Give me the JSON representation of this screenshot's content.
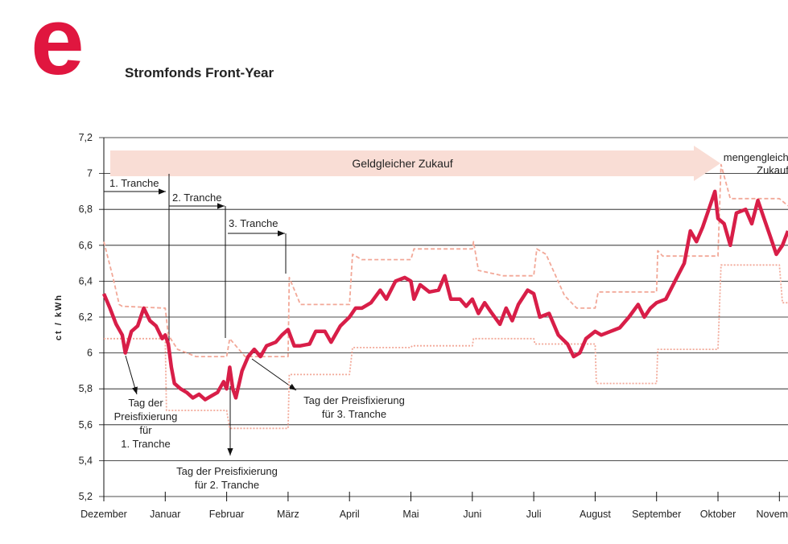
{
  "logo": "e",
  "chart_data": {
    "type": "line",
    "title": "Stromfonds Front-Year",
    "ylabel": "ct / kWh",
    "xlim": [
      0,
      11.14
    ],
    "ylim": [
      5.2,
      7.2
    ],
    "xticks": [
      {
        "value": 0,
        "label": "Dezember"
      },
      {
        "value": 1,
        "label": "Januar"
      },
      {
        "value": 2,
        "label": "Februar"
      },
      {
        "value": 3,
        "label": "März"
      },
      {
        "value": 4,
        "label": "April"
      },
      {
        "value": 5,
        "label": "Mai"
      },
      {
        "value": 6,
        "label": "Juni"
      },
      {
        "value": 7,
        "label": "Juli"
      },
      {
        "value": 8,
        "label": "August"
      },
      {
        "value": 9,
        "label": "September"
      },
      {
        "value": 10,
        "label": "Oktober"
      },
      {
        "value": 11,
        "label": "November"
      }
    ],
    "yticks": [
      {
        "value": 5.2,
        "label": "5,2"
      },
      {
        "value": 5.4,
        "label": "5,4"
      },
      {
        "value": 5.6,
        "label": "5,6"
      },
      {
        "value": 5.8,
        "label": "5,8"
      },
      6,
      {
        "value": 6.2,
        "label": "6,2"
      },
      {
        "value": 6.4,
        "label": "6,4"
      },
      {
        "value": 6.6,
        "label": "6,6"
      },
      {
        "value": 6.8,
        "label": "6,8"
      },
      7,
      {
        "value": 7.2,
        "label": "7,2"
      }
    ],
    "grid": true,
    "series": [
      {
        "color": "#f2a898",
        "style": "dashed",
        "x": [
          0,
          0.15,
          0.25,
          0.3,
          1.0,
          1.05,
          1.2,
          1.5,
          2.0,
          2.05,
          2.3,
          3.0,
          3.02,
          3.2,
          4.0,
          4.05,
          4.2,
          5.0,
          5.05,
          6.0,
          6.02,
          6.1,
          6.5,
          7.0,
          7.05,
          7.2,
          7.5,
          7.7,
          8.0,
          8.05,
          9.0,
          9.02,
          9.1,
          10.0,
          10.05,
          10.2,
          11.0,
          11.14
        ],
        "values": [
          6.62,
          6.42,
          6.27,
          6.26,
          6.25,
          6.1,
          6.02,
          5.98,
          5.98,
          6.08,
          5.98,
          5.98,
          6.42,
          6.27,
          6.27,
          6.55,
          6.52,
          6.52,
          6.58,
          6.58,
          6.62,
          6.46,
          6.43,
          6.43,
          6.58,
          6.55,
          6.32,
          6.25,
          6.25,
          6.34,
          6.34,
          6.57,
          6.54,
          6.54,
          7.05,
          6.86,
          6.86,
          6.82
        ]
      },
      {
        "color": "#f2a898",
        "style": "dotted",
        "x": [
          0,
          1.0,
          1.02,
          2.0,
          2.05,
          3.0,
          3.02,
          4.0,
          4.05,
          5.0,
          5.02,
          6.0,
          6.02,
          7.0,
          7.02,
          8.0,
          8.02,
          9.0,
          9.02,
          10.0,
          10.05,
          11.0,
          11.05,
          11.14
        ],
        "values": [
          6.08,
          6.08,
          5.68,
          5.68,
          5.58,
          5.58,
          5.88,
          5.88,
          6.03,
          6.03,
          6.04,
          6.04,
          6.08,
          6.08,
          6.05,
          6.05,
          5.83,
          5.83,
          6.02,
          6.02,
          6.49,
          6.49,
          6.28,
          6.28
        ]
      },
      {
        "color": "#d81e48",
        "style": "solid",
        "x": [
          0,
          0.1,
          0.2,
          0.3,
          0.35,
          0.45,
          0.55,
          0.65,
          0.75,
          0.85,
          0.95,
          1.0,
          1.05,
          1.1,
          1.15,
          1.25,
          1.35,
          1.45,
          1.55,
          1.65,
          1.75,
          1.85,
          1.95,
          2.0,
          2.05,
          2.1,
          2.15,
          2.25,
          2.35,
          2.45,
          2.55,
          2.65,
          2.8,
          2.9,
          3.0,
          3.1,
          3.2,
          3.35,
          3.45,
          3.6,
          3.7,
          3.85,
          4.0,
          4.1,
          4.2,
          4.35,
          4.5,
          4.6,
          4.75,
          4.9,
          5.0,
          5.05,
          5.15,
          5.3,
          5.45,
          5.55,
          5.65,
          5.8,
          5.9,
          6.0,
          6.1,
          6.2,
          6.3,
          6.45,
          6.55,
          6.65,
          6.75,
          6.9,
          7.0,
          7.1,
          7.25,
          7.4,
          7.55,
          7.65,
          7.75,
          7.85,
          8.0,
          8.1,
          8.25,
          8.4,
          8.55,
          8.7,
          8.8,
          8.9,
          9.0,
          9.15,
          9.3,
          9.45,
          9.55,
          9.65,
          9.75,
          9.85,
          9.95,
          10.0,
          10.1,
          10.2,
          10.3,
          10.45,
          10.55,
          10.65,
          10.75,
          10.85,
          10.95,
          11.05,
          11.14
        ],
        "values": [
          6.33,
          6.25,
          6.16,
          6.1,
          6.0,
          6.12,
          6.15,
          6.25,
          6.18,
          6.15,
          6.08,
          6.1,
          6.05,
          5.92,
          5.83,
          5.8,
          5.78,
          5.75,
          5.77,
          5.74,
          5.76,
          5.78,
          5.84,
          5.8,
          5.92,
          5.8,
          5.75,
          5.9,
          5.98,
          6.02,
          5.98,
          6.04,
          6.06,
          6.1,
          6.13,
          6.04,
          6.04,
          6.05,
          6.12,
          6.12,
          6.06,
          6.15,
          6.2,
          6.25,
          6.25,
          6.28,
          6.35,
          6.3,
          6.4,
          6.42,
          6.4,
          6.3,
          6.38,
          6.34,
          6.35,
          6.43,
          6.3,
          6.3,
          6.26,
          6.3,
          6.22,
          6.28,
          6.23,
          6.16,
          6.25,
          6.18,
          6.27,
          6.35,
          6.33,
          6.2,
          6.22,
          6.1,
          6.05,
          5.98,
          6.0,
          6.08,
          6.12,
          6.1,
          6.12,
          6.14,
          6.2,
          6.27,
          6.2,
          6.25,
          6.28,
          6.3,
          6.4,
          6.5,
          6.68,
          6.62,
          6.7,
          6.8,
          6.9,
          6.75,
          6.72,
          6.6,
          6.78,
          6.8,
          6.72,
          6.85,
          6.75,
          6.65,
          6.55,
          6.6,
          6.68
        ]
      }
    ],
    "annotations": {
      "banner": "Geldgleicher Zukauf",
      "banner2": [
        "mengengleicher",
        "Zukauf"
      ],
      "tranche1": "1. Tranche",
      "tranche2": "2. Tranche",
      "tranche3": "3. Tranche",
      "fix1": [
        "Tag der",
        "Preisfixierung",
        "für",
        "1. Tranche"
      ],
      "fix2": [
        "Tag der Preisfixierung",
        "für 2. Tranche"
      ],
      "fix3": [
        "Tag der Preisfixierung",
        "für 3. Tranche"
      ]
    }
  }
}
